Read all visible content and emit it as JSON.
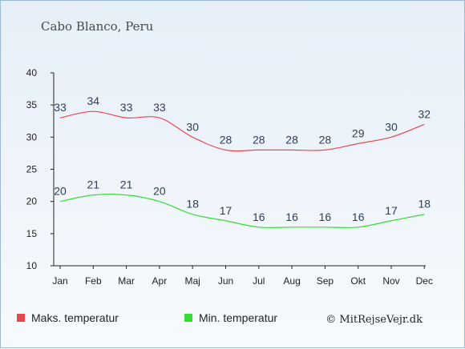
{
  "chart_data": {
    "type": "line",
    "title": "Cabo Blanco, Peru",
    "categories": [
      "Jan",
      "Feb",
      "Mar",
      "Apr",
      "Maj",
      "Jun",
      "Jul",
      "Aug",
      "Sep",
      "Okt",
      "Nov",
      "Dec"
    ],
    "series": [
      {
        "name": "Maks. temperatur",
        "color": "#e8474c",
        "values": [
          33,
          34,
          33,
          33,
          30,
          28,
          28,
          28,
          28,
          29,
          30,
          32
        ]
      },
      {
        "name": "Min. temperatur",
        "color": "#35dc35",
        "values": [
          20,
          21,
          21,
          20,
          18,
          17,
          16,
          16,
          16,
          16,
          17,
          18
        ]
      }
    ],
    "ylim": [
      10,
      40
    ],
    "yticks": [
      10,
      15,
      20,
      25,
      30,
      35,
      40
    ],
    "grid": false,
    "legend_position": "bottom-left",
    "credit": "© MitRejseVejr.dk"
  }
}
